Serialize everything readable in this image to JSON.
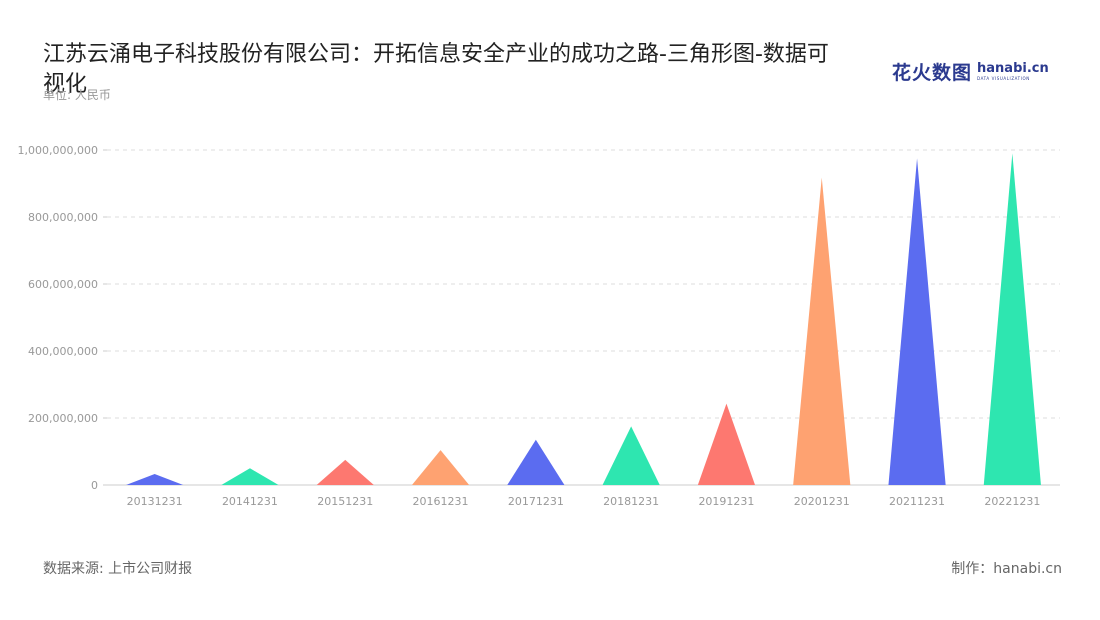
{
  "title": "江苏云涌电子科技股份有限公司：开拓信息安全产业的成功之路-三角形图-数据可视化",
  "unit_label": "单位: 人民币",
  "brand": {
    "cn": "花火数图",
    "en": "hanabi.cn",
    "sub": "DATA VISUALIZATION"
  },
  "source": "数据来源: 上市公司财报",
  "credit": "制作：hanabi.cn",
  "colors": {
    "blue": "#5b6cf0",
    "green": "#2ee6b0",
    "red": "#fd7870",
    "orange": "#fea271",
    "grid": "#dcdcdc",
    "axis": "#cccccc"
  },
  "chart_data": {
    "type": "bar",
    "shape": "triangle",
    "title": "江苏云涌电子科技股份有限公司：开拓信息安全产业的成功之路-三角形图-数据可视化",
    "ylabel": "单位: 人民币",
    "xlabel": "",
    "ylim": [
      0,
      1000000000
    ],
    "yticks": [
      0,
      200000000,
      400000000,
      600000000,
      800000000,
      1000000000
    ],
    "ytick_labels": [
      "0",
      "200,000,000",
      "400,000,000",
      "600,000,000",
      "800,000,000",
      "1,000,000,000"
    ],
    "grid": true,
    "categories": [
      "20131231",
      "20141231",
      "20151231",
      "20161231",
      "20171231",
      "20181231",
      "20191231",
      "20201231",
      "20211231",
      "20221231"
    ],
    "values": [
      33000000,
      50000000,
      75000000,
      104000000,
      135000000,
      175000000,
      243000000,
      918000000,
      975000000,
      990000000
    ],
    "bar_colors": [
      "#5b6cf0",
      "#2ee6b0",
      "#fd7870",
      "#fea271",
      "#5b6cf0",
      "#2ee6b0",
      "#fd7870",
      "#fea271",
      "#5b6cf0",
      "#2ee6b0"
    ]
  }
}
